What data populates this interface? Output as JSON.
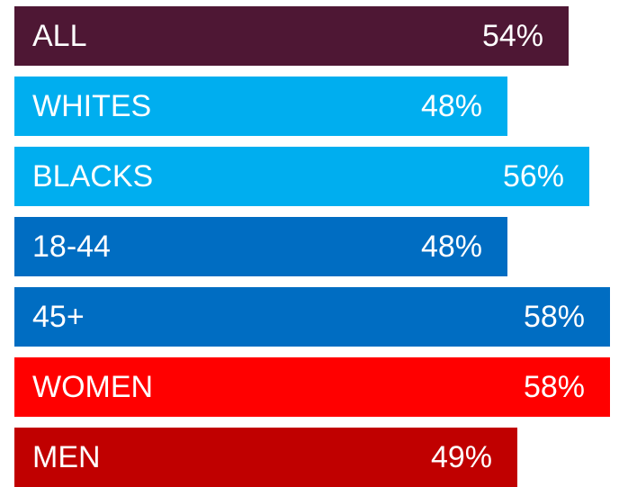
{
  "chart_data": {
    "type": "bar",
    "orientation": "horizontal",
    "categories": [
      "ALL",
      "WHITES",
      "BLACKS",
      "18-44",
      "45+",
      "WOMEN",
      "MEN"
    ],
    "values": [
      54,
      48,
      56,
      48,
      58,
      58,
      49
    ],
    "value_labels": [
      "54%",
      "48%",
      "56%",
      "48%",
      "58%",
      "58%",
      "49%"
    ],
    "colors": [
      "#4e1734",
      "#00aeef",
      "#00aeef",
      "#006dc2",
      "#006dc2",
      "#ff0000",
      "#c00000"
    ],
    "title": "",
    "xlabel": "",
    "ylabel": "",
    "grid": false
  }
}
